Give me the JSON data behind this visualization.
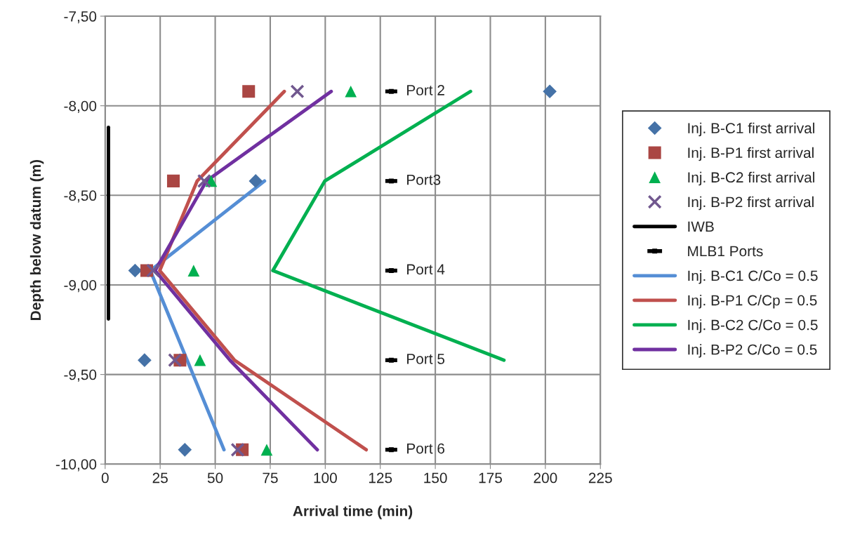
{
  "chart_data": {
    "type": "scatter",
    "xlabel": "Arrival time (min)",
    "ylabel": "Depth below datum (m)",
    "xlim": [
      0,
      225
    ],
    "xticks": [
      0,
      25,
      50,
      75,
      100,
      125,
      150,
      175,
      200,
      225
    ],
    "ylim": [
      -10,
      -7.5
    ],
    "yticks": [
      {
        "value": -10,
        "label": "-10,00"
      },
      {
        "value": -9.5,
        "label": "-9,50"
      },
      {
        "value": -9,
        "label": "-9,00"
      },
      {
        "value": -8.5,
        "label": "-8,50"
      },
      {
        "value": -8,
        "label": "-8,00"
      },
      {
        "value": -7.5,
        "label": "-7,50"
      }
    ],
    "grid": true,
    "legend": "right",
    "series": [
      {
        "name": "Inj. B-C1 first arrival",
        "marker": "diamond",
        "color": "#4572a7",
        "x": [
          202,
          68.4,
          13.6,
          17.9,
          36.2
        ],
        "values": [
          -7.92,
          -8.42,
          -8.92,
          -9.42,
          -9.92
        ]
      },
      {
        "name": "Inj. B-P1 first arrival",
        "marker": "square",
        "color": "#aa4643",
        "x": [
          65.2,
          31,
          18.9,
          34,
          62.3
        ],
        "values": [
          -7.92,
          -8.42,
          -8.92,
          -9.42,
          -9.92
        ]
      },
      {
        "name": "Inj. B-C2 first arrival",
        "marker": "triangle",
        "color": "#00b050",
        "x": [
          111.6,
          48.2,
          40.2,
          43.1,
          73.4
        ],
        "values": [
          -7.92,
          -8.42,
          -8.92,
          -9.42,
          -9.92
        ]
      },
      {
        "name": "Inj. B-P2 first arrival",
        "marker": "cross",
        "color": "#71588f",
        "x": [
          87.3,
          45,
          21.8,
          31.7,
          60.2
        ],
        "values": [
          -7.92,
          -8.42,
          -8.92,
          -9.42,
          -9.92
        ]
      },
      {
        "name": "IWB",
        "type": "line",
        "color": "#000000",
        "x": [
          1.5,
          1.5
        ],
        "values": [
          -8.12,
          -9.19
        ]
      },
      {
        "name": "MLB1 Ports",
        "marker": "square",
        "color": "#000000",
        "x": [
          130,
          130,
          130,
          130,
          130
        ],
        "values": [
          -7.92,
          -8.42,
          -8.92,
          -9.42,
          -9.92
        ],
        "xerrors": [
          2.7,
          2.7,
          2.7,
          2.7,
          2.7
        ]
      },
      {
        "name": "Inj. B-C1 C/Co = 0.5",
        "type": "line",
        "color": "#558ed5",
        "x": [
          72.4,
          20.5,
          54
        ],
        "values": [
          -8.42,
          -8.92,
          -9.92
        ]
      },
      {
        "name": "Inj. B-P1 C/Cp = 0.5",
        "type": "line",
        "color": "#c0504d",
        "x": [
          81.4,
          41.8,
          24.8,
          58.8,
          118.6
        ],
        "values": [
          -7.92,
          -8.42,
          -8.92,
          -9.42,
          -9.92
        ]
      },
      {
        "name": "Inj. B-C2 C/Co = 0.5",
        "type": "line",
        "color": "#00b050",
        "x": [
          166,
          99.8,
          76.2,
          181.2
        ],
        "values": [
          -7.92,
          -8.42,
          -8.92,
          -9.42
        ]
      },
      {
        "name": "Inj. B-P2 C/Co = 0.5",
        "type": "line",
        "color": "#7030a0",
        "x": [
          102.7,
          46,
          22.7,
          56.7,
          96.4
        ],
        "values": [
          -7.92,
          -8.42,
          -8.92,
          -9.42,
          -9.92
        ]
      }
    ],
    "annotations": [
      "Port 2",
      "Port3",
      "Port 4",
      "Port 5",
      "Port 6"
    ]
  }
}
